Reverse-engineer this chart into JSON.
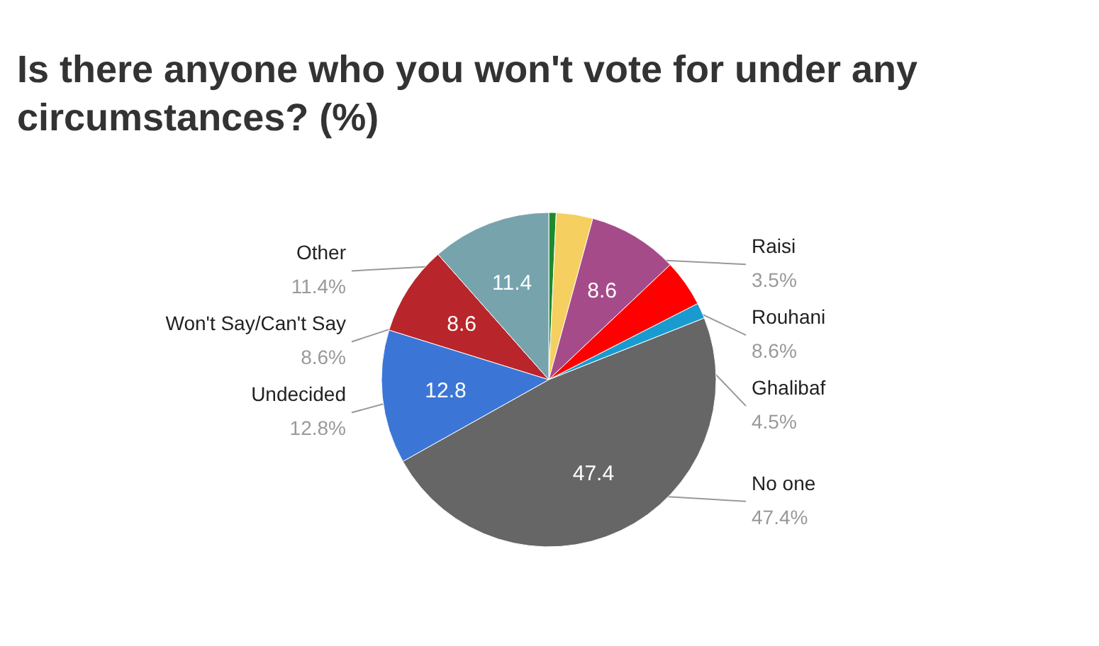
{
  "chart_data": {
    "type": "pie",
    "title": "Is there anyone who you won't vote for under any circumstances? (%)",
    "categories": [
      null,
      "Raisi",
      "Rouhani",
      "Ghalibaf",
      null,
      "No one",
      "Undecided",
      "Won't Say/Can't Say",
      "Other"
    ],
    "values": [
      0.7,
      3.5,
      8.6,
      4.5,
      1.5,
      47.4,
      12.8,
      8.6,
      11.4
    ],
    "colors": [
      "#1e8a2e",
      "#f5cf5f",
      "#a64b8a",
      "#ff0000",
      "#1a9bd0",
      "#666666",
      "#3b76d6",
      "#b8262b",
      "#77a3ad"
    ],
    "value_labels": [
      null,
      null,
      "8.6",
      null,
      null,
      "47.4",
      "12.8",
      "8.6",
      "11.4"
    ],
    "annotations": [
      "3.5%",
      "8.6%",
      "4.5%",
      "47.4%",
      "12.8%",
      "8.6%",
      "11.4%"
    ],
    "legend": false
  }
}
